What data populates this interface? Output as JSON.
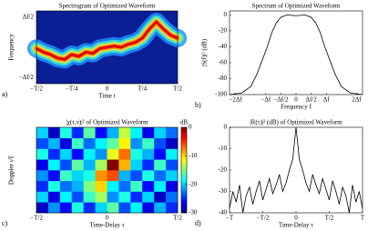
{
  "chart_data": [
    {
      "type": "spectrogram",
      "title": "Spectrogram of Optimized Waveform",
      "xlabel": "Time t",
      "ylabel": "Frequency",
      "panel_label": "a)",
      "x": [
        -0.5,
        -0.45,
        -0.4,
        -0.35,
        -0.3,
        -0.25,
        -0.2,
        -0.15,
        -0.1,
        -0.05,
        0,
        0.05,
        0.1,
        0.15,
        0.2,
        0.25,
        0.3,
        0.35,
        0.4,
        0.45,
        0.5
      ],
      "values": [
        -0.02,
        -0.08,
        -0.12,
        -0.18,
        -0.2,
        -0.12,
        -0.15,
        -0.08,
        -0.1,
        -0.02,
        0.0,
        0.02,
        0.0,
        0.05,
        0.08,
        0.15,
        0.3,
        0.42,
        0.3,
        0.2,
        0.15
      ],
      "color": "#e00000",
      "xlim": [
        -0.5,
        0.5
      ],
      "ylim": [
        -0.6,
        0.6
      ],
      "xticks": [
        {
          "value": -0.5,
          "label": "−T/2"
        },
        {
          "value": -0.25,
          "label": "−T/4"
        },
        0,
        {
          "value": 0.25,
          "label": "T/4"
        },
        {
          "value": 0.5,
          "label": "T/2"
        }
      ],
      "yticks": [
        {
          "value": -0.5,
          "label": "−Δf/2"
        },
        {
          "value": 0.5,
          "label": "Δf/2"
        }
      ]
    },
    {
      "type": "line",
      "title": "Spectrum of Optimized Waveform",
      "xlabel": "Frequency f",
      "ylabel": "|S(f)|² (dB)",
      "panel_label": "b)",
      "x": [
        -2.2,
        -1.8,
        -1.5,
        -1.3,
        -1.1,
        -0.95,
        -0.8,
        -0.65,
        -0.5,
        -0.3,
        0,
        0.3,
        0.5,
        0.65,
        0.8,
        0.95,
        1.1,
        1.3,
        1.5,
        1.8,
        2.2
      ],
      "values": [
        -100,
        -98,
        -90,
        -75,
        -55,
        -40,
        -22,
        -10,
        -3,
        0,
        -1,
        0,
        -3,
        -10,
        -22,
        -40,
        -55,
        -75,
        -90,
        -98,
        -100
      ],
      "color": "#000000",
      "xlim": [
        -2.2,
        2.2
      ],
      "ylim": [
        -100,
        5
      ],
      "xticks": [
        {
          "value": -2,
          "label": "−2Δf"
        },
        {
          "value": -1,
          "label": "−Δf"
        },
        {
          "value": -0.5,
          "label": "−Δf/2"
        },
        0,
        {
          "value": 0.5,
          "label": "Δf/2"
        },
        {
          "value": 1,
          "label": "Δf"
        },
        {
          "value": 2,
          "label": "2Δf"
        }
      ],
      "yticks": [
        0,
        -20,
        -40,
        -60,
        -80,
        -100
      ]
    },
    {
      "type": "heatmap",
      "title": "|χ(τ,ν)|² of Optimized Waveform",
      "xlabel": "Time-Delay τ",
      "ylabel": "Doppler νT",
      "panel_label": "c)",
      "colormap": "jet",
      "colorbar_label": "dB",
      "clim": [
        -30,
        0
      ],
      "cticks": [
        0,
        -10,
        -20,
        -30
      ],
      "z": [
        [
          -28,
          -22,
          -26,
          -18,
          -25,
          -20,
          -16,
          -24,
          -19,
          -27,
          -21,
          -25
        ],
        [
          -20,
          -27,
          -19,
          -24,
          -17,
          -14,
          -22,
          -18,
          -25,
          -20,
          -28,
          -23
        ],
        [
          -25,
          -18,
          -23,
          -21,
          -15,
          -10,
          -19,
          -23,
          -17,
          -26,
          -19,
          -27
        ],
        [
          -22,
          -26,
          -17,
          -20,
          -18,
          -8,
          -6,
          -21,
          -24,
          -18,
          -23,
          -20
        ],
        [
          -27,
          -19,
          -24,
          -16,
          -21,
          -14,
          0,
          -9,
          -20,
          -25,
          -17,
          -24
        ],
        [
          -18,
          -25,
          -20,
          -26,
          -19,
          -22,
          -12,
          -7,
          -18,
          -21,
          -26,
          -19
        ],
        [
          -24,
          -21,
          -27,
          -17,
          -23,
          -19,
          -16,
          -11,
          -22,
          -17,
          -24,
          -28
        ],
        [
          -20,
          -28,
          -18,
          -25,
          -16,
          -26,
          -21,
          -13,
          -19,
          -27,
          -20,
          -23
        ]
      ],
      "xlim": [
        -0.5,
        0.5
      ],
      "xticks": [
        {
          "value": -0.5,
          "label": "−T/2"
        },
        0,
        {
          "value": 0.5,
          "label": "T/2"
        }
      ]
    },
    {
      "type": "line",
      "title": "|R(τ)|² (dB) of Optimized Waveform",
      "xlabel": "Time-Delay τ",
      "panel_label": "d)",
      "x": [
        -1,
        -0.95,
        -0.9,
        -0.85,
        -0.8,
        -0.75,
        -0.7,
        -0.65,
        -0.6,
        -0.55,
        -0.5,
        -0.45,
        -0.4,
        -0.35,
        -0.3,
        -0.25,
        -0.2,
        -0.15,
        -0.1,
        -0.05,
        0,
        0.05,
        0.1,
        0.15,
        0.2,
        0.25,
        0.3,
        0.35,
        0.4,
        0.45,
        0.5,
        0.55,
        0.6,
        0.65,
        0.7,
        0.75,
        0.8,
        0.85,
        0.9,
        0.95,
        1
      ],
      "values": [
        -38,
        -30,
        -35,
        -27,
        -40,
        -32,
        -28,
        -36,
        -30,
        -25,
        -34,
        -29,
        -24,
        -31,
        -27,
        -22,
        -30,
        -26,
        -20,
        -15,
        0,
        -15,
        -20,
        -26,
        -30,
        -22,
        -27,
        -31,
        -24,
        -29,
        -34,
        -25,
        -30,
        -36,
        -28,
        -32,
        -40,
        -27,
        -35,
        -30,
        -38
      ],
      "color": "#000000",
      "xlim": [
        -1,
        1
      ],
      "ylim": [
        -40,
        0
      ],
      "xticks": [
        {
          "value": -1,
          "label": "−T"
        },
        {
          "value": -0.5,
          "label": "−T/2"
        },
        0,
        {
          "value": 0.5,
          "label": "T/2"
        },
        {
          "value": 1,
          "label": "T"
        }
      ],
      "yticks": [
        0,
        -10,
        -20,
        -30,
        -40
      ]
    }
  ]
}
